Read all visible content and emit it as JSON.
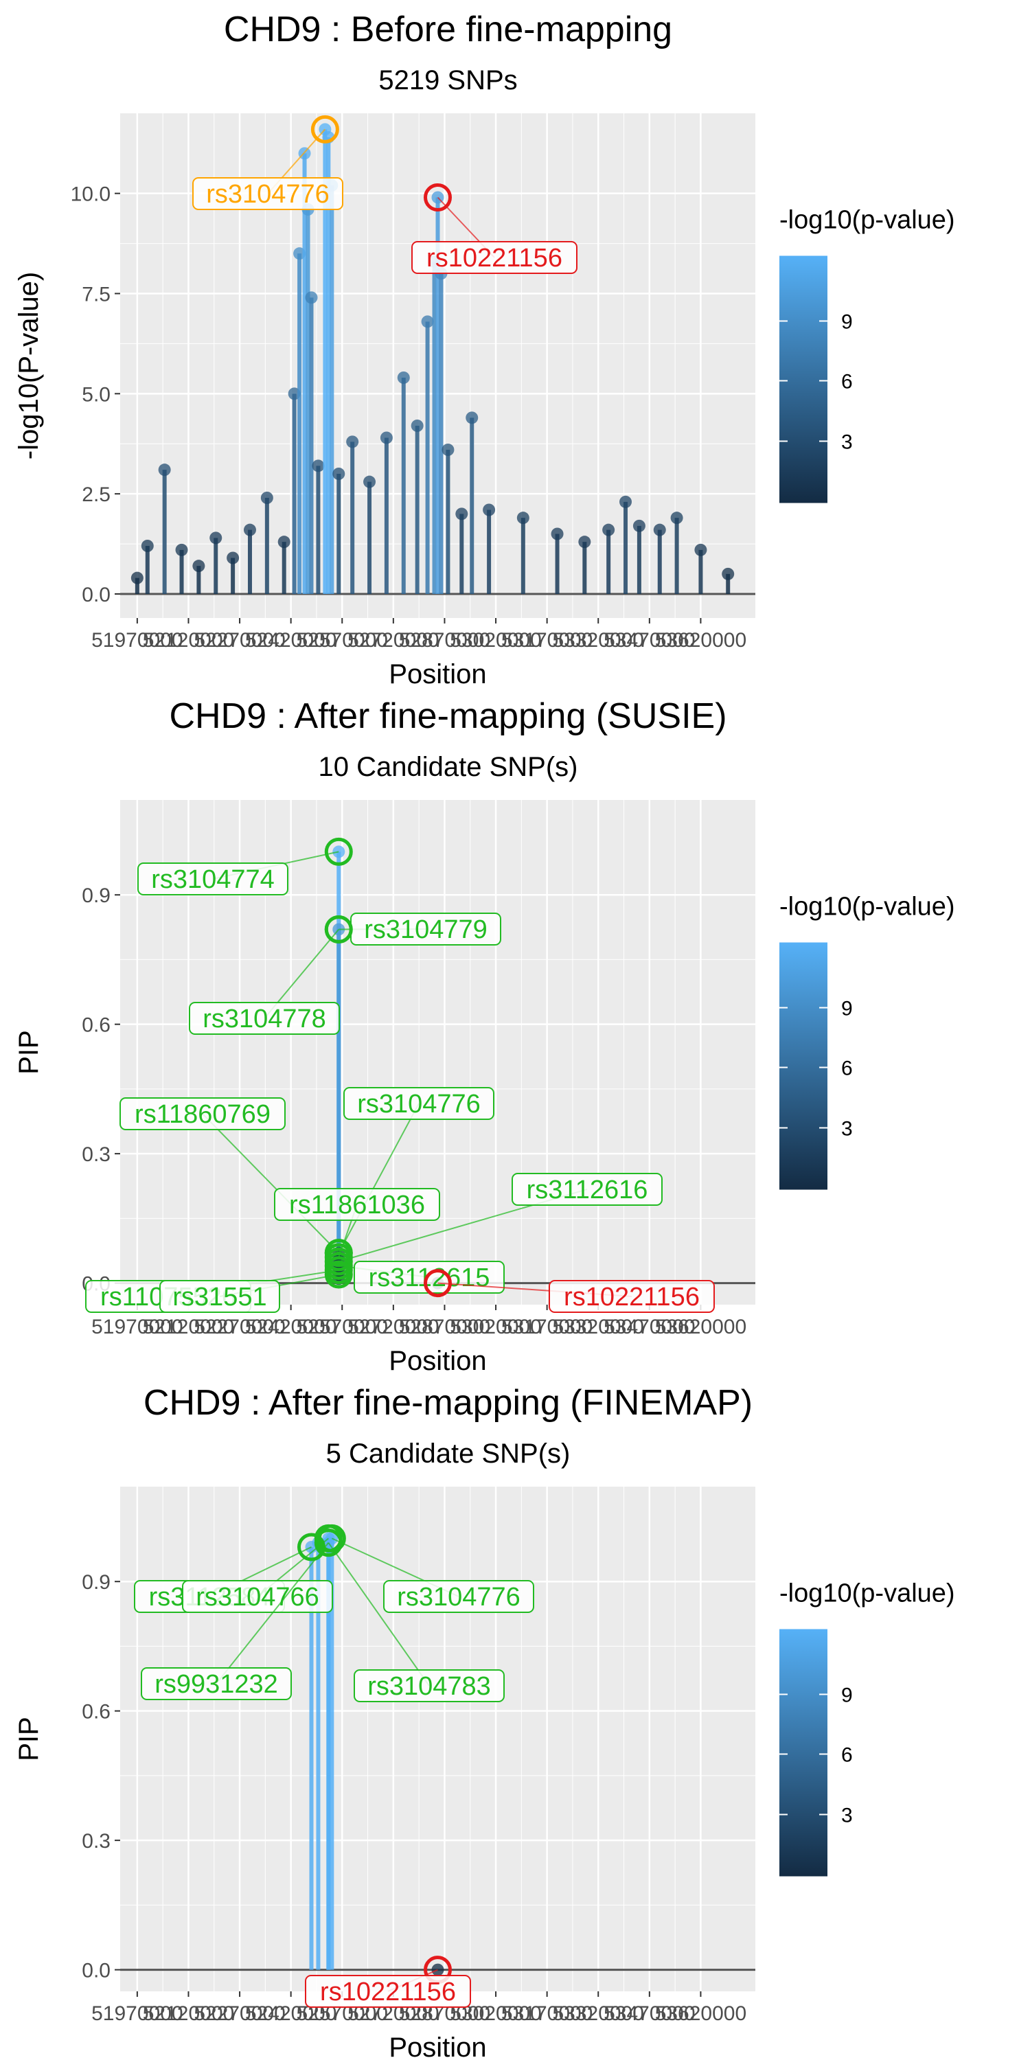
{
  "chart_data": [
    {
      "type": "scatter",
      "title": "CHD9 : Before fine-mapping",
      "subtitle": "5219 SNPs",
      "xlabel": "Position",
      "ylabel": "-log10(P-value)",
      "xlim": [
        51920000,
        53780000
      ],
      "ylim": [
        -0.6,
        12.0
      ],
      "xticks": [
        51970000,
        52120000,
        52270000,
        52420000,
        52570000,
        52720000,
        52870000,
        53020000,
        53170000,
        53320000,
        53470000,
        53620000
      ],
      "xtick_labels": [
        "51970000",
        "52120000",
        "52270000",
        "52420000",
        "52570000",
        "52720000",
        "52870000",
        "53020000",
        "53170000",
        "53320000",
        "53470000",
        "53620000"
      ],
      "yticks": [
        0,
        2.5,
        5,
        7.5,
        10
      ],
      "ytick_labels": [
        "0.0",
        "2.5",
        "5.0",
        "7.5",
        "10.0"
      ],
      "grid": true,
      "legend": {
        "title": "-log10(p-value)",
        "labels": [
          "9",
          "6",
          "3"
        ],
        "placement": "right"
      },
      "annotations": [
        {
          "label": "rs3104776",
          "x": 52520000,
          "y": 11.6,
          "color": "#ffa500"
        },
        {
          "label": "rs10221156",
          "x": 52850000,
          "y": 9.9,
          "color": "#e41a1c"
        }
      ],
      "points": [
        [
          51970000,
          0.4
        ],
        [
          52000000,
          1.2
        ],
        [
          52050000,
          3.1
        ],
        [
          52100000,
          1.1
        ],
        [
          52150000,
          0.7
        ],
        [
          52200000,
          1.4
        ],
        [
          52250000,
          0.9
        ],
        [
          52300000,
          1.6
        ],
        [
          52350000,
          2.4
        ],
        [
          52400000,
          1.3
        ],
        [
          52430000,
          5.0
        ],
        [
          52445000,
          8.5
        ],
        [
          52460000,
          11.0
        ],
        [
          52470000,
          9.6
        ],
        [
          52480000,
          7.4
        ],
        [
          52500000,
          3.2
        ],
        [
          52520000,
          11.6
        ],
        [
          52530000,
          11.4
        ],
        [
          52540000,
          10.2
        ],
        [
          52560000,
          3.0
        ],
        [
          52600000,
          3.8
        ],
        [
          52650000,
          2.8
        ],
        [
          52700000,
          3.9
        ],
        [
          52750000,
          5.4
        ],
        [
          52790000,
          4.2
        ],
        [
          52820000,
          6.8
        ],
        [
          52840000,
          8.3
        ],
        [
          52850000,
          9.9
        ],
        [
          52860000,
          8.0
        ],
        [
          52880000,
          3.6
        ],
        [
          52920000,
          2.0
        ],
        [
          52950000,
          4.4
        ],
        [
          53000000,
          2.1
        ],
        [
          53100000,
          1.9
        ],
        [
          53200000,
          1.5
        ],
        [
          53280000,
          1.3
        ],
        [
          53350000,
          1.6
        ],
        [
          53400000,
          2.3
        ],
        [
          53440000,
          1.7
        ],
        [
          53500000,
          1.6
        ],
        [
          53550000,
          1.9
        ],
        [
          53620000,
          1.1
        ],
        [
          53700000,
          0.5
        ]
      ]
    },
    {
      "type": "scatter",
      "title": "CHD9 : After fine-mapping (SUSIE)",
      "subtitle": "10 Candidate SNP(s)",
      "xlabel": "Position",
      "ylabel": "PIP",
      "xlim": [
        51920000,
        53780000
      ],
      "ylim": [
        -0.05,
        1.12
      ],
      "xticks": [
        51970000,
        52120000,
        52270000,
        52420000,
        52570000,
        52720000,
        52870000,
        53020000,
        53170000,
        53320000,
        53470000,
        53620000
      ],
      "xtick_labels": [
        "51970000",
        "52120000",
        "52270000",
        "52420000",
        "52570000",
        "52720000",
        "52870000",
        "53020000",
        "53170000",
        "53320000",
        "53470000",
        "53620000"
      ],
      "yticks": [
        0,
        0.3,
        0.6,
        0.9
      ],
      "ytick_labels": [
        "0.0",
        "0.3",
        "0.6",
        "0.9"
      ],
      "grid": true,
      "legend": {
        "title": "-log10(p-value)",
        "labels": [
          "9",
          "6",
          "3"
        ],
        "placement": "right"
      },
      "annotations": [
        {
          "label": "rs3104774",
          "x": 52560000,
          "y": 1.0,
          "color": "#22bb22"
        },
        {
          "label": "rs3104779",
          "x": 52560000,
          "y": 0.82,
          "color": "#22bb22"
        },
        {
          "label": "rs3104778",
          "x": 52560000,
          "y": 0.82,
          "color": "#22bb22"
        },
        {
          "label": "rs11860769",
          "x": 52560000,
          "y": 0.07,
          "color": "#22bb22"
        },
        {
          "label": "rs3104776",
          "x": 52560000,
          "y": 0.07,
          "color": "#22bb22"
        },
        {
          "label": "rs11861036",
          "x": 52560000,
          "y": 0.06,
          "color": "#22bb22"
        },
        {
          "label": "rs3112616",
          "x": 52560000,
          "y": 0.05,
          "color": "#22bb22"
        },
        {
          "label": "rs3112615",
          "x": 52560000,
          "y": 0.04,
          "color": "#22bb22"
        },
        {
          "label": "rs11075526",
          "x": 52560000,
          "y": 0.03,
          "color": "#22bb22"
        },
        {
          "label": "rs31551",
          "x": 52560000,
          "y": 0.02,
          "color": "#22bb22"
        },
        {
          "label": "rs10221156",
          "x": 52850000,
          "y": 0.0,
          "color": "#e41a1c"
        }
      ],
      "points": [
        [
          52560000,
          1.0
        ],
        [
          52560000,
          0.82
        ],
        [
          52560000,
          0.07
        ],
        [
          52560000,
          0.06
        ],
        [
          52560000,
          0.05
        ],
        [
          52560000,
          0.04
        ],
        [
          52560000,
          0.03
        ],
        [
          52560000,
          0.02
        ],
        [
          52560000,
          0.01
        ],
        [
          52850000,
          0.0
        ]
      ]
    },
    {
      "type": "scatter",
      "title": "CHD9 : After fine-mapping (FINEMAP)",
      "subtitle": "5 Candidate SNP(s)",
      "xlabel": "Position",
      "ylabel": "PIP",
      "xlim": [
        51920000,
        53780000
      ],
      "ylim": [
        -0.05,
        1.12
      ],
      "xticks": [
        51970000,
        52120000,
        52270000,
        52420000,
        52570000,
        52720000,
        52870000,
        53020000,
        53170000,
        53320000,
        53470000,
        53620000
      ],
      "xtick_labels": [
        "51970000",
        "52120000",
        "52270000",
        "52420000",
        "52570000",
        "52720000",
        "52870000",
        "53020000",
        "53170000",
        "53320000",
        "53470000",
        "53620000"
      ],
      "yticks": [
        0,
        0.3,
        0.6,
        0.9
      ],
      "ytick_labels": [
        "0.0",
        "0.3",
        "0.6",
        "0.9"
      ],
      "grid": true,
      "legend": {
        "title": "-log10(p-value)",
        "labels": [
          "9",
          "6",
          "3"
        ],
        "placement": "right"
      },
      "annotations": [
        {
          "label": "rs3112584",
          "x": 52480000,
          "y": 0.98,
          "color": "#22bb22"
        },
        {
          "label": "rs3104766",
          "x": 52530000,
          "y": 1.0,
          "color": "#22bb22"
        },
        {
          "label": "rs3104776",
          "x": 52540000,
          "y": 1.0,
          "color": "#22bb22"
        },
        {
          "label": "rs9931232",
          "x": 52530000,
          "y": 0.99,
          "color": "#22bb22"
        },
        {
          "label": "rs3104783",
          "x": 52530000,
          "y": 0.99,
          "color": "#22bb22"
        },
        {
          "label": "rs10221156",
          "x": 52850000,
          "y": 0.0,
          "color": "#e41a1c"
        }
      ],
      "points": [
        [
          52480000,
          0.98
        ],
        [
          52530000,
          1.0
        ],
        [
          52540000,
          1.0
        ],
        [
          52500000,
          0.99
        ],
        [
          52530000,
          0.99
        ],
        [
          52850000,
          0.0
        ]
      ]
    }
  ]
}
